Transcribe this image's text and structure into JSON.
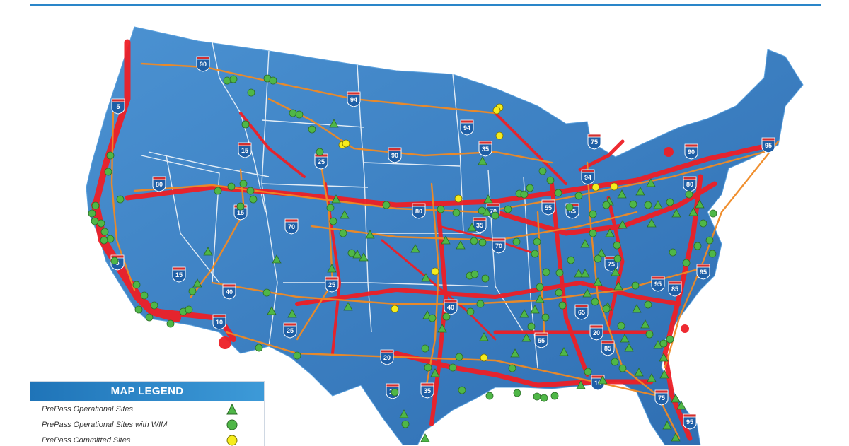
{
  "colors": {
    "land": "#3f86c9",
    "land_dark": "#2f6fb3",
    "traffic": "#ee1f26",
    "interstate_line": "#f08a24",
    "site_green": "#4fb747",
    "site_outline": "#2b6a27",
    "committed_yellow": "#f6ec1c",
    "shield_blue": "#1f5fa6",
    "shield_red": "#d32f2f"
  },
  "interstates": [
    "90",
    "5",
    "94",
    "15",
    "94",
    "25",
    "90",
    "35",
    "95",
    "75",
    "90",
    "80",
    "80",
    "94",
    "55",
    "65",
    "80",
    "70",
    "15",
    "70",
    "5",
    "35",
    "70",
    "75",
    "95",
    "15",
    "40",
    "25",
    "40",
    "85",
    "95",
    "10",
    "25",
    "65",
    "20",
    "55",
    "85",
    "20",
    "10",
    "10",
    "35",
    "75",
    "95"
  ],
  "legend": {
    "title": "MAP LEGEND",
    "items": [
      {
        "label": "PrePass Operational Sites",
        "symbol": "triangle-icon"
      },
      {
        "label": "PrePass Operational Sites with WIM",
        "symbol": "circle-icon"
      },
      {
        "label": "PrePass Committed Sites",
        "symbol": "yellow-circle-icon"
      }
    ]
  }
}
